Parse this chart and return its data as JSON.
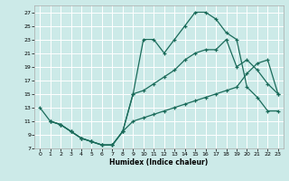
{
  "xlabel": "Humidex (Indice chaleur)",
  "bg_color": "#cceae8",
  "grid_color": "#ffffff",
  "line_color": "#1a6b5a",
  "xlim": [
    -0.5,
    23.5
  ],
  "ylim": [
    7,
    28
  ],
  "xticks": [
    0,
    1,
    2,
    3,
    4,
    5,
    6,
    7,
    8,
    9,
    10,
    11,
    12,
    13,
    14,
    15,
    16,
    17,
    18,
    19,
    20,
    21,
    22,
    23
  ],
  "yticks": [
    7,
    9,
    11,
    13,
    15,
    17,
    19,
    21,
    23,
    25,
    27
  ],
  "line1_x": [
    0,
    1,
    2,
    3,
    4,
    5,
    6,
    7,
    8,
    9,
    10,
    11,
    12,
    13,
    14,
    15,
    16,
    17,
    18,
    19,
    20,
    21,
    22,
    23
  ],
  "line1_y": [
    13,
    11,
    10.5,
    9.5,
    8.5,
    8,
    7.5,
    7.5,
    9.5,
    15,
    23,
    23,
    21,
    23,
    25,
    27,
    27,
    26,
    24,
    23,
    16,
    14.5,
    12.5,
    12.5
  ],
  "line2_x": [
    1,
    2,
    3,
    4,
    5,
    6,
    7,
    8,
    9,
    10,
    11,
    12,
    13,
    14,
    15,
    16,
    17,
    18,
    19,
    20,
    21,
    22,
    23
  ],
  "line2_y": [
    11,
    10.5,
    9.5,
    8.5,
    8,
    7.5,
    7.5,
    9.5,
    15,
    15.5,
    16.5,
    17.5,
    18.5,
    20,
    21,
    21.5,
    21.5,
    23,
    19,
    20,
    18.5,
    16.5,
    15
  ],
  "line3_x": [
    1,
    2,
    3,
    4,
    5,
    6,
    7,
    8,
    9,
    10,
    11,
    12,
    13,
    14,
    15,
    16,
    17,
    18,
    19,
    20,
    21,
    22,
    23
  ],
  "line3_y": [
    11,
    10.5,
    9.5,
    8.5,
    8,
    7.5,
    7.5,
    9.5,
    11,
    11.5,
    12,
    12.5,
    13,
    13.5,
    14,
    14.5,
    15,
    15.5,
    16,
    18,
    19.5,
    20,
    15
  ]
}
